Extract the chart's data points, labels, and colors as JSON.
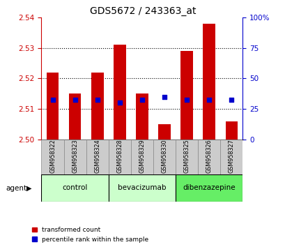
{
  "title": "GDS5672 / 243363_at",
  "samples": [
    "GSM958322",
    "GSM958323",
    "GSM958324",
    "GSM958328",
    "GSM958329",
    "GSM958330",
    "GSM958325",
    "GSM958326",
    "GSM958327"
  ],
  "red_values": [
    2.522,
    2.515,
    2.522,
    2.531,
    2.515,
    2.505,
    2.529,
    2.538,
    2.506
  ],
  "blue_values": [
    2.513,
    2.513,
    2.513,
    2.512,
    2.513,
    2.514,
    2.513,
    2.513,
    2.513
  ],
  "ymin": 2.5,
  "ymax": 2.54,
  "y_ticks": [
    2.5,
    2.51,
    2.52,
    2.53,
    2.54
  ],
  "right_ticks": [
    0,
    25,
    50,
    75,
    100
  ],
  "groups": [
    {
      "label": "control",
      "start": 0,
      "end": 2,
      "color": "#ccffcc"
    },
    {
      "label": "bevacizumab",
      "start": 3,
      "end": 5,
      "color": "#ccffcc"
    },
    {
      "label": "dibenzazepine",
      "start": 6,
      "end": 8,
      "color": "#66ee66"
    }
  ],
  "bar_color": "#cc0000",
  "blue_color": "#0000cc",
  "bar_width": 0.55,
  "blue_square_size": 18,
  "title_fontsize": 10,
  "axis_label_color_red": "#cc0000",
  "axis_label_color_blue": "#0000cc",
  "agent_label": "agent",
  "legend_items": [
    "transformed count",
    "percentile rank within the sample"
  ]
}
